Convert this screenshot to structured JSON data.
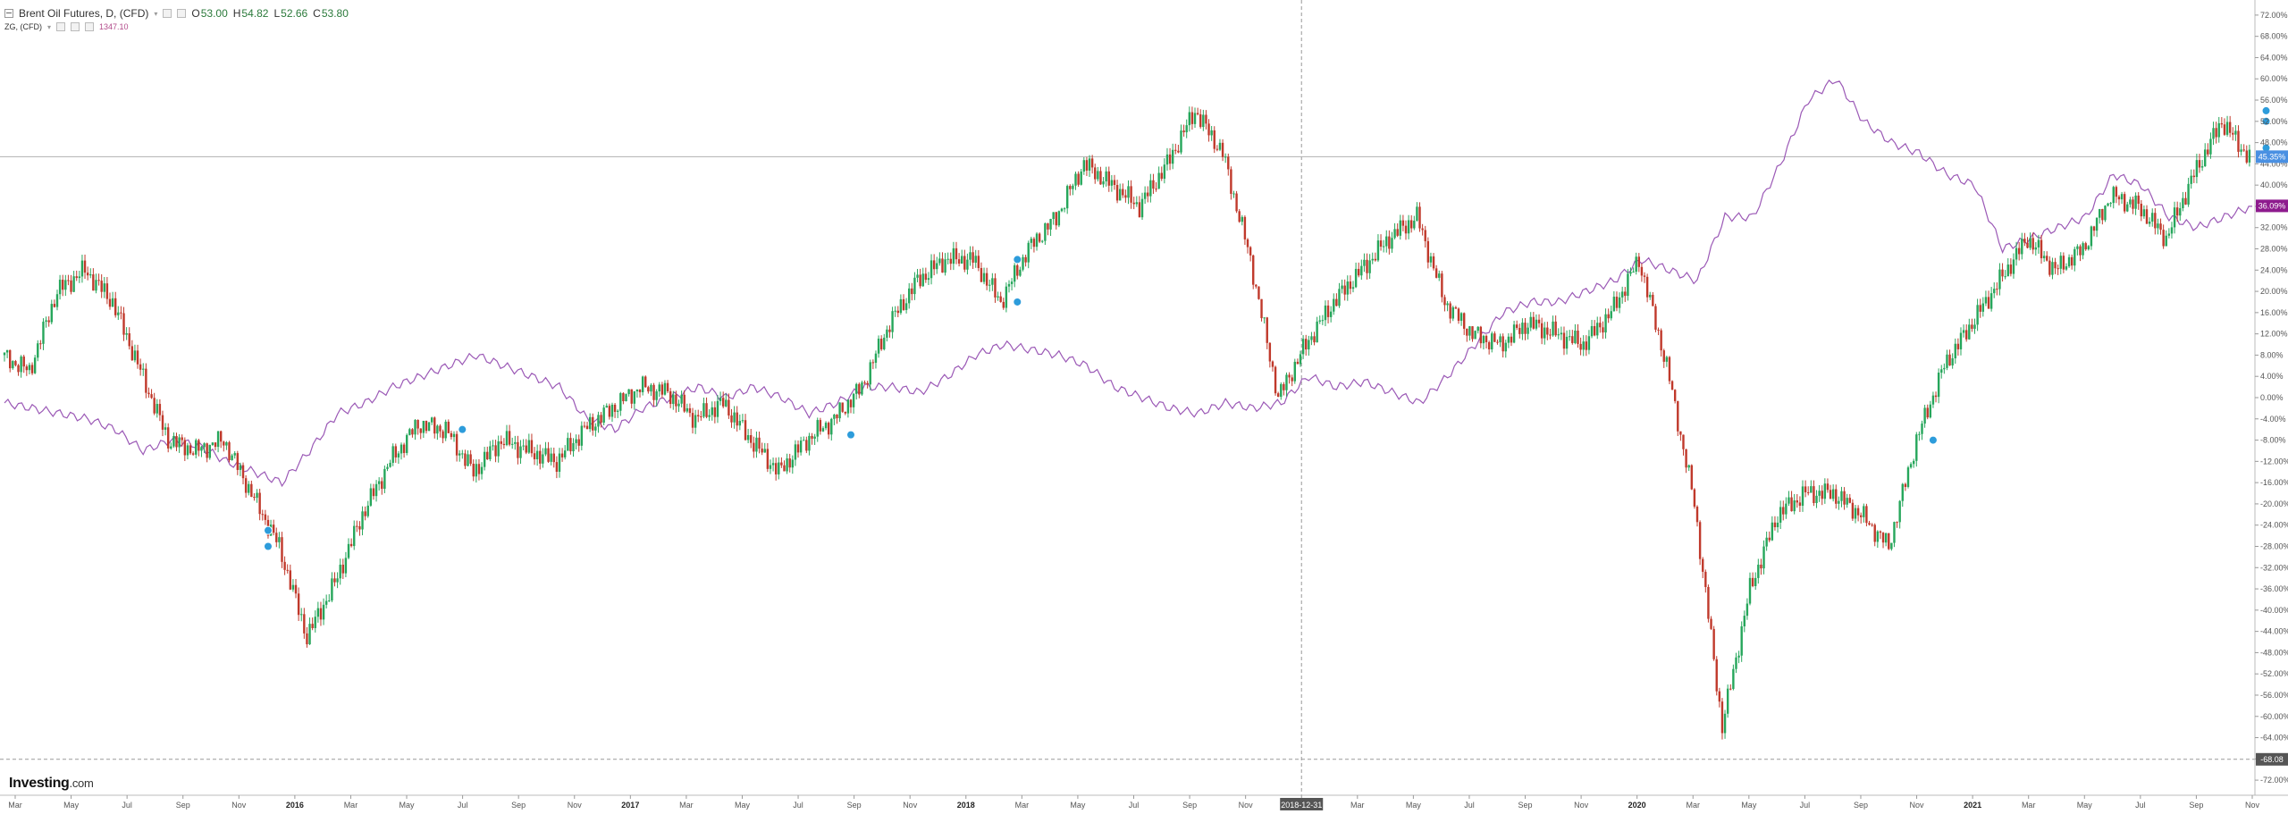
{
  "legend": {
    "main_title": "Brent Oil Futures, D, (CFD)",
    "open_key": "O",
    "open": "53.00",
    "high_key": "H",
    "high": "54.82",
    "low_key": "L",
    "low": "52.66",
    "close_key": "C",
    "close": "53.80",
    "compare_title": "ZG, (CFD)",
    "compare_value": "1347.10"
  },
  "branding": {
    "logo_main": "Investing",
    "logo_suffix": ".com"
  },
  "colors": {
    "up": "#26a65b",
    "down": "#c0392b",
    "compare": "#9b59b6",
    "last_price_bg": "#4a90e2",
    "compare_label_bg": "#8e1b8e",
    "dark_label_bg": "#555555",
    "event_marker": "#2d9cdb"
  },
  "chart_data": {
    "type": "line",
    "title": "Brent Oil Futures, D, (CFD)",
    "y_unit": "percent change",
    "ylim": [
      -74,
      74
    ],
    "y_ticks": [
      "72.00%",
      "68.00%",
      "64.00%",
      "60.00%",
      "56.00%",
      "52.00%",
      "48.00%",
      "44.00%",
      "40.00%",
      "36.00%",
      "32.00%",
      "28.00%",
      "24.00%",
      "20.00%",
      "16.00%",
      "12.00%",
      "8.00%",
      "4.00%",
      "0.00%",
      "-4.00%",
      "-8.00%",
      "-12.00%",
      "-16.00%",
      "-20.00%",
      "-24.00%",
      "-28.00%",
      "-32.00%",
      "-36.00%",
      "-40.00%",
      "-44.00%",
      "-48.00%",
      "-52.00%",
      "-56.00%",
      "-60.00%",
      "-64.00%",
      "-68.00%",
      "-72.00%"
    ],
    "x_labels": [
      "Mar",
      "May",
      "Jul",
      "Sep",
      "Nov",
      "2016",
      "Mar",
      "May",
      "Jul",
      "Sep",
      "Nov",
      "2017",
      "Mar",
      "May",
      "Jul",
      "Sep",
      "Nov",
      "2018",
      "Mar",
      "May",
      "Jul",
      "Sep",
      "Nov",
      "2018-12-31",
      "Mar",
      "May",
      "Jul",
      "Sep",
      "Nov",
      "2020",
      "Mar",
      "May",
      "Jul",
      "Sep",
      "Nov",
      "2021",
      "Mar",
      "May",
      "Jul",
      "Sep",
      "Nov"
    ],
    "crosshair_label": "2018-12-31",
    "x_range": [
      "2015-02",
      "2021-11"
    ],
    "grid": false,
    "price_line_label": "45.35%",
    "price_line_value": 45.35,
    "compare_line_label": "36.09%",
    "compare_line_value": 36.09,
    "crosshair_y_label": "-68.08",
    "crosshair_y_value": -68.08,
    "series": [
      {
        "name": "Brent Oil Futures, D, (CFD)",
        "style": "candlestick",
        "x": [
          "2015-02",
          "2015-03",
          "2015-04",
          "2015-05",
          "2015-06",
          "2015-07",
          "2015-08",
          "2015-09",
          "2015-10",
          "2015-11",
          "2015-12",
          "2016-01",
          "2016-02",
          "2016-03",
          "2016-04",
          "2016-05",
          "2016-06",
          "2016-07",
          "2016-08",
          "2016-09",
          "2016-10",
          "2016-11",
          "2016-12",
          "2017-01",
          "2017-02",
          "2017-03",
          "2017-04",
          "2017-05",
          "2017-06",
          "2017-07",
          "2017-08",
          "2017-09",
          "2017-10",
          "2017-11",
          "2017-12",
          "2018-01",
          "2018-02",
          "2018-03",
          "2018-04",
          "2018-05",
          "2018-06",
          "2018-07",
          "2018-08",
          "2018-09",
          "2018-10",
          "2018-11",
          "2018-12",
          "2019-01",
          "2019-02",
          "2019-03",
          "2019-04",
          "2019-05",
          "2019-06",
          "2019-07",
          "2019-08",
          "2019-09",
          "2019-10",
          "2019-11",
          "2019-12",
          "2020-01",
          "2020-02",
          "2020-03",
          "2020-04",
          "2020-05",
          "2020-06",
          "2020-07",
          "2020-08",
          "2020-09",
          "2020-10",
          "2020-11",
          "2020-12",
          "2021-01",
          "2021-02",
          "2021-03",
          "2021-04",
          "2021-05",
          "2021-06",
          "2021-07",
          "2021-08",
          "2021-09",
          "2021-10",
          "2021-11"
        ],
        "values": [
          8,
          5,
          20,
          24,
          18,
          5,
          -8,
          -10,
          -8,
          -18,
          -28,
          -45,
          -35,
          -22,
          -12,
          -5,
          -6,
          -14,
          -8,
          -10,
          -12,
          -6,
          -2,
          2,
          1,
          -4,
          -1,
          -8,
          -14,
          -8,
          -4,
          2,
          14,
          22,
          26,
          26,
          18,
          28,
          34,
          44,
          40,
          36,
          44,
          54,
          46,
          26,
          0,
          10,
          18,
          24,
          30,
          34,
          18,
          12,
          10,
          14,
          12,
          10,
          16,
          26,
          6,
          -20,
          -62,
          -36,
          -22,
          -18,
          -18,
          -22,
          -28,
          -8,
          6,
          14,
          22,
          30,
          24,
          28,
          38,
          36,
          30,
          42,
          52,
          45
        ]
      },
      {
        "name": "ZG, (CFD)",
        "style": "line",
        "x": [
          "2015-02",
          "2015-03",
          "2015-04",
          "2015-05",
          "2015-06",
          "2015-07",
          "2015-08",
          "2015-09",
          "2015-10",
          "2015-11",
          "2015-12",
          "2016-01",
          "2016-02",
          "2016-03",
          "2016-04",
          "2016-05",
          "2016-06",
          "2016-07",
          "2016-08",
          "2016-09",
          "2016-10",
          "2016-11",
          "2016-12",
          "2017-01",
          "2017-02",
          "2017-03",
          "2017-04",
          "2017-05",
          "2017-06",
          "2017-07",
          "2017-08",
          "2017-09",
          "2017-10",
          "2017-11",
          "2017-12",
          "2018-01",
          "2018-02",
          "2018-03",
          "2018-04",
          "2018-05",
          "2018-06",
          "2018-07",
          "2018-08",
          "2018-09",
          "2018-10",
          "2018-11",
          "2018-12",
          "2019-01",
          "2019-02",
          "2019-03",
          "2019-04",
          "2019-05",
          "2019-06",
          "2019-07",
          "2019-08",
          "2019-09",
          "2019-10",
          "2019-11",
          "2019-12",
          "2020-01",
          "2020-02",
          "2020-03",
          "2020-04",
          "2020-05",
          "2020-06",
          "2020-07",
          "2020-08",
          "2020-09",
          "2020-10",
          "2020-11",
          "2020-12",
          "2021-01",
          "2021-02",
          "2021-03",
          "2021-04",
          "2021-05",
          "2021-06",
          "2021-07",
          "2021-08",
          "2021-09",
          "2021-10",
          "2021-11"
        ],
        "values": [
          -1,
          -2,
          -3,
          -4,
          -6,
          -10,
          -8,
          -9,
          -12,
          -14,
          -16,
          -10,
          -3,
          -1,
          2,
          4,
          6,
          8,
          6,
          4,
          2,
          -4,
          -6,
          -2,
          0,
          2,
          0,
          2,
          0,
          -3,
          -1,
          2,
          2,
          1,
          4,
          8,
          10,
          9,
          8,
          6,
          2,
          0,
          -2,
          -3,
          -1,
          -2,
          -1,
          4,
          2,
          3,
          1,
          -1,
          4,
          10,
          16,
          18,
          18,
          20,
          22,
          26,
          24,
          22,
          34,
          34,
          44,
          56,
          60,
          52,
          48,
          46,
          42,
          40,
          28,
          30,
          32,
          34,
          42,
          40,
          34,
          32,
          34,
          36
        ]
      }
    ],
    "event_markers": [
      {
        "date": "2015-11",
        "value": -25
      },
      {
        "date": "2015-11",
        "value": -28
      },
      {
        "date": "2016-06",
        "value": -6
      },
      {
        "date": "2017-08",
        "value": -7
      },
      {
        "date": "2018-02",
        "value": 26
      },
      {
        "date": "2018-02",
        "value": 18
      },
      {
        "date": "2020-11",
        "value": -8
      },
      {
        "date": "2021-11",
        "value": 54
      },
      {
        "date": "2021-11",
        "value": 52
      },
      {
        "date": "2021-11",
        "value": 47
      }
    ]
  }
}
